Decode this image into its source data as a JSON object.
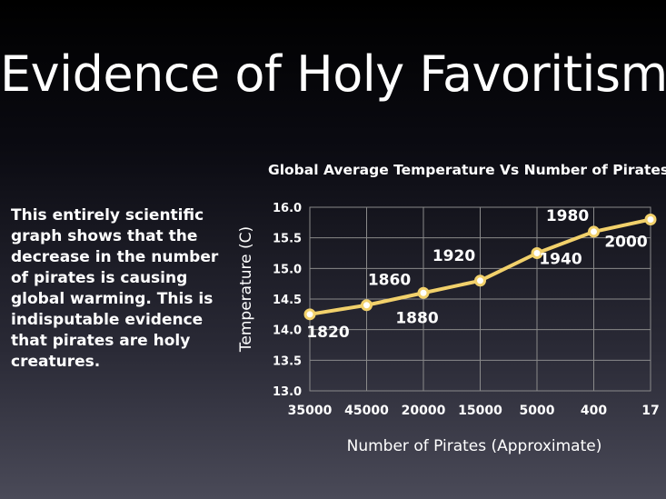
{
  "slide": {
    "title": "Evidence of Holy Favoritism:",
    "body": "This entirely scientific graph shows that the decrease in the number of pirates is causing global warming. This is indisputable evidence that pirates are holy creatures."
  },
  "chart_data": {
    "type": "line",
    "title": "Global Average Temperature Vs Number of Pirates",
    "xlabel": "Number of Pirates (Approximate)",
    "ylabel": "Temperature (C)",
    "categories": [
      "35000",
      "45000",
      "20000",
      "15000",
      "5000",
      "400",
      "17"
    ],
    "series": [
      {
        "values": [
          14.25,
          14.4,
          14.6,
          14.8,
          15.25,
          15.6,
          15.8
        ],
        "point_labels": [
          "1820",
          "1860",
          "1880",
          "1920",
          "1940",
          "1980",
          "2000"
        ]
      }
    ],
    "ylim": [
      13.0,
      16.0
    ],
    "yticks": [
      "13.0",
      "13.5",
      "14.0",
      "14.5",
      "15.0",
      "15.5",
      "16.0"
    ],
    "grid": true,
    "colors": {
      "line": "#f2d16b",
      "marker_fill": "#ffffff",
      "grid": "#8a8a8a"
    }
  }
}
